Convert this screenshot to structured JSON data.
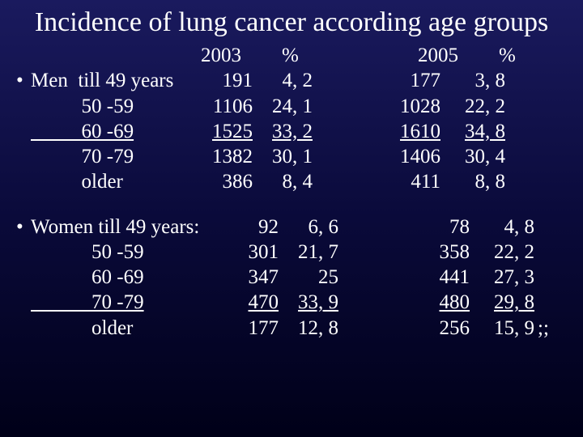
{
  "title": "Incidence of lung cancer according age groups",
  "colors": {
    "bg_top": "#1a1a5e",
    "bg_mid": "#0a0a3a",
    "bg_bottom": "#000018",
    "text": "#ffffff"
  },
  "typography": {
    "title_fontsize_pt": 26,
    "body_fontsize_pt": 19,
    "font_family": "Times New Roman"
  },
  "header": {
    "y2003": "2003",
    "pct2003": "%",
    "y2005": "2005",
    "pct2005": "%"
  },
  "men": {
    "bullet": "•",
    "lead": "Men  till 49 years",
    "rows": [
      {
        "label": "Men  till 49 years",
        "c2003": "191",
        "p2003": "4, 2",
        "c2005": "177",
        "p2005": "3, 8",
        "underline": false
      },
      {
        "label": "          50 -59",
        "c2003": "1106",
        "p2003": "24, 1",
        "c2005": "1028",
        "p2005": "22, 2",
        "underline": false
      },
      {
        "label": "          60 -69",
        "c2003": "1525",
        "p2003": "33, 2",
        "c2005": "1610",
        "p2005": "34, 8",
        "underline": true
      },
      {
        "label": "          70 -79",
        "c2003": "1382",
        "p2003": "30, 1",
        "c2005": "1406",
        "p2005": "30, 4",
        "underline": false
      },
      {
        "label": "          older",
        "c2003": "386",
        "p2003": "8, 4",
        "c2005": "411",
        "p2005": "8, 8",
        "underline": false
      }
    ]
  },
  "women": {
    "bullet": "•",
    "rows": [
      {
        "label": "Women till 49 years:",
        "c2003": "92",
        "p2003": "6, 6",
        "c2005": "78",
        "p2005": "4, 8",
        "underline": false,
        "tail": ""
      },
      {
        "label": "            50 -59",
        "c2003": "301",
        "p2003": "21, 7",
        "c2005": "358",
        "p2005": "22, 2",
        "underline": false,
        "tail": ""
      },
      {
        "label": "            60 -69",
        "c2003": "347",
        "p2003": "25",
        "c2005": "441",
        "p2005": "27, 3",
        "underline": false,
        "tail": ""
      },
      {
        "label": "            70 -79",
        "c2003": "470",
        "p2003": "33, 9",
        "c2005": "480",
        "p2005": "29, 8",
        "underline": true,
        "tail": ""
      },
      {
        "label": "            older",
        "c2003": "177",
        "p2003": "12, 8",
        "c2005": "256",
        "p2005": "15, 9",
        "underline": false,
        "tail": ";;"
      }
    ]
  }
}
